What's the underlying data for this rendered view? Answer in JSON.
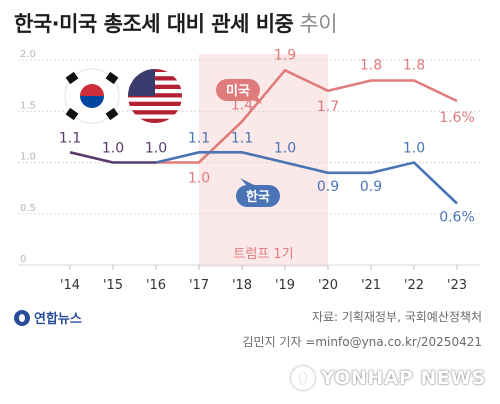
{
  "title": "한국·미국 총조세 대비 관세 비중",
  "subtitle": "추이",
  "chart_data": {
    "type": "line",
    "categories": [
      "'14",
      "'15",
      "'16",
      "'17",
      "'18",
      "'19",
      "'20",
      "'21",
      "'22",
      "'23"
    ],
    "ylim": [
      0,
      2.0
    ],
    "yticks": [
      "0",
      "0.5",
      "1.0",
      "1.5",
      "2.0"
    ],
    "grid": true,
    "series": [
      {
        "name": "미국",
        "color": "#e07b7b",
        "values": [
          1.1,
          1.0,
          1.0,
          1.0,
          1.4,
          1.9,
          1.7,
          1.8,
          1.8,
          1.6
        ],
        "labels": [
          "",
          "",
          "",
          "1.0",
          "1.4",
          "1.9",
          "1.7",
          "1.8",
          "1.8",
          "1.6%"
        ]
      },
      {
        "name": "한국",
        "color": "#4a74b5",
        "values": [
          1.1,
          1.0,
          1.0,
          1.1,
          1.1,
          1.0,
          0.9,
          0.9,
          1.0,
          0.6
        ],
        "labels": [
          "1.1",
          "1.0",
          "1.0",
          "1.1",
          "1.1",
          "1.0",
          "0.9",
          "0.9",
          "1.0",
          "0.6%"
        ]
      }
    ],
    "shared_color": "#5b3a6b",
    "highlight": {
      "from": "'17",
      "to": "'20",
      "label": "트럼프 1기"
    }
  },
  "source": "자료: 기획재정부, 국회예산정책처",
  "credit": "김민지 기자 =minfo@yna.co.kr/20250421",
  "agency_logo": "연합뉴스",
  "watermark": "YONHAP NEWS",
  "flags": [
    "korea-flag-icon",
    "usa-flag-icon"
  ]
}
